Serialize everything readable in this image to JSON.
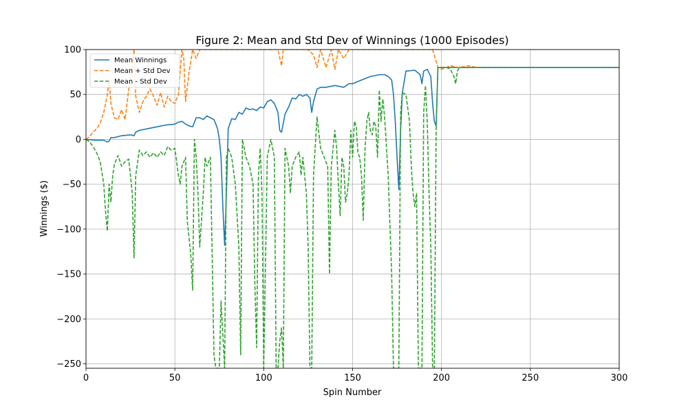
{
  "chart_data": {
    "type": "line",
    "title": "Figure 2: Mean and Std Dev of Winnings (1000 Episodes)",
    "xlabel": "Spin Number",
    "ylabel": "Winnings ($)",
    "xlim": [
      0,
      300
    ],
    "ylim": [
      -255,
      100
    ],
    "xticks": [
      0,
      50,
      100,
      150,
      200,
      250,
      300
    ],
    "yticks": [
      -250,
      -200,
      -150,
      -100,
      -50,
      0,
      50,
      100
    ],
    "grid": true,
    "legend_position": "upper-left",
    "series": [
      {
        "name": "Mean Winnings",
        "style": "solid",
        "color": "#1f77b4",
        "points": [
          [
            0,
            0
          ],
          [
            5,
            -1
          ],
          [
            10,
            -1
          ],
          [
            12,
            -3
          ],
          [
            13,
            -2
          ],
          [
            14,
            2
          ],
          [
            16,
            2
          ],
          [
            18,
            3
          ],
          [
            20,
            4
          ],
          [
            25,
            5
          ],
          [
            27,
            4
          ],
          [
            28,
            8
          ],
          [
            30,
            10
          ],
          [
            35,
            12
          ],
          [
            40,
            14
          ],
          [
            45,
            16
          ],
          [
            50,
            17
          ],
          [
            52,
            19
          ],
          [
            54,
            20
          ],
          [
            56,
            17
          ],
          [
            58,
            15
          ],
          [
            60,
            14
          ],
          [
            62,
            24
          ],
          [
            64,
            24
          ],
          [
            66,
            22
          ],
          [
            68,
            26
          ],
          [
            70,
            24
          ],
          [
            72,
            22
          ],
          [
            74,
            12
          ],
          [
            75,
            0
          ],
          [
            76,
            -20
          ],
          [
            77,
            -75
          ],
          [
            78,
            -118
          ],
          [
            79,
            -60
          ],
          [
            80,
            12
          ],
          [
            82,
            23
          ],
          [
            84,
            22
          ],
          [
            86,
            30
          ],
          [
            88,
            28
          ],
          [
            90,
            35
          ],
          [
            92,
            33
          ],
          [
            94,
            34
          ],
          [
            96,
            32
          ],
          [
            98,
            36
          ],
          [
            100,
            35
          ],
          [
            102,
            42
          ],
          [
            104,
            44
          ],
          [
            106,
            40
          ],
          [
            108,
            30
          ],
          [
            109,
            10
          ],
          [
            110,
            8
          ],
          [
            111,
            18
          ],
          [
            112,
            28
          ],
          [
            114,
            36
          ],
          [
            116,
            46
          ],
          [
            118,
            45
          ],
          [
            120,
            50
          ],
          [
            122,
            48
          ],
          [
            124,
            50
          ],
          [
            126,
            46
          ],
          [
            127,
            30
          ],
          [
            128,
            42
          ],
          [
            130,
            56
          ],
          [
            132,
            58
          ],
          [
            135,
            58
          ],
          [
            140,
            60
          ],
          [
            145,
            58
          ],
          [
            148,
            62
          ],
          [
            150,
            62
          ],
          [
            155,
            66
          ],
          [
            160,
            70
          ],
          [
            165,
            72
          ],
          [
            168,
            72
          ],
          [
            170,
            70
          ],
          [
            172,
            66
          ],
          [
            173,
            50
          ],
          [
            174,
            20
          ],
          [
            175,
            -20
          ],
          [
            176,
            -56
          ],
          [
            177,
            10
          ],
          [
            178,
            52
          ],
          [
            180,
            76
          ],
          [
            185,
            77
          ],
          [
            188,
            72
          ],
          [
            189,
            62
          ],
          [
            190,
            76
          ],
          [
            192,
            78
          ],
          [
            194,
            70
          ],
          [
            195,
            40
          ],
          [
            196,
            20
          ],
          [
            197,
            15
          ],
          [
            198,
            80
          ],
          [
            200,
            80
          ],
          [
            210,
            80
          ],
          [
            220,
            80
          ],
          [
            250,
            80
          ],
          [
            300,
            80
          ]
        ]
      },
      {
        "name": "Mean + Std Dev",
        "style": "dashed",
        "color": "#ff7f0e",
        "points": [
          [
            0,
            0
          ],
          [
            2,
            3
          ],
          [
            4,
            8
          ],
          [
            6,
            12
          ],
          [
            8,
            18
          ],
          [
            10,
            30
          ],
          [
            12,
            50
          ],
          [
            13,
            66
          ],
          [
            14,
            40
          ],
          [
            16,
            24
          ],
          [
            18,
            22
          ],
          [
            20,
            33
          ],
          [
            22,
            22
          ],
          [
            24,
            55
          ],
          [
            26,
            80
          ],
          [
            27,
            100
          ],
          [
            28,
            48
          ],
          [
            30,
            30
          ],
          [
            32,
            42
          ],
          [
            34,
            48
          ],
          [
            36,
            56
          ],
          [
            38,
            48
          ],
          [
            40,
            38
          ],
          [
            42,
            52
          ],
          [
            44,
            36
          ],
          [
            46,
            48
          ],
          [
            48,
            42
          ],
          [
            50,
            40
          ],
          [
            52,
            50
          ],
          [
            54,
            100
          ],
          [
            55,
            90
          ],
          [
            56,
            42
          ],
          [
            58,
            75
          ],
          [
            60,
            100
          ],
          [
            62,
            90
          ],
          [
            64,
            100
          ],
          [
            66,
            100
          ],
          [
            68,
            100
          ],
          [
            70,
            100
          ],
          [
            75,
            100
          ],
          [
            80,
            100
          ],
          [
            90,
            100
          ],
          [
            100,
            100
          ],
          [
            108,
            100
          ],
          [
            110,
            82
          ],
          [
            111,
            100
          ],
          [
            120,
            100
          ],
          [
            125,
            100
          ],
          [
            128,
            94
          ],
          [
            130,
            80
          ],
          [
            132,
            100
          ],
          [
            135,
            80
          ],
          [
            138,
            100
          ],
          [
            140,
            78
          ],
          [
            142,
            100
          ],
          [
            145,
            90
          ],
          [
            148,
            100
          ],
          [
            150,
            100
          ],
          [
            160,
            100
          ],
          [
            170,
            100
          ],
          [
            180,
            100
          ],
          [
            190,
            100
          ],
          [
            195,
            100
          ],
          [
            198,
            80
          ],
          [
            200,
            78
          ],
          [
            205,
            82
          ],
          [
            210,
            80
          ],
          [
            215,
            82
          ],
          [
            220,
            80
          ],
          [
            222,
            80
          ]
        ]
      },
      {
        "name": "Mean - Std Dev",
        "style": "dashed",
        "color": "#2ca02c",
        "points": [
          [
            0,
            0
          ],
          [
            2,
            -3
          ],
          [
            4,
            -8
          ],
          [
            6,
            -15
          ],
          [
            8,
            -25
          ],
          [
            10,
            -50
          ],
          [
            11,
            -80
          ],
          [
            12,
            -102
          ],
          [
            13,
            -50
          ],
          [
            14,
            -70
          ],
          [
            15,
            -40
          ],
          [
            16,
            -28
          ],
          [
            18,
            -18
          ],
          [
            20,
            -30
          ],
          [
            22,
            -25
          ],
          [
            24,
            -22
          ],
          [
            25,
            -40
          ],
          [
            26,
            -60
          ],
          [
            27,
            -132
          ],
          [
            28,
            -40
          ],
          [
            30,
            -12
          ],
          [
            32,
            -18
          ],
          [
            34,
            -14
          ],
          [
            36,
            -20
          ],
          [
            38,
            -15
          ],
          [
            40,
            -20
          ],
          [
            42,
            -14
          ],
          [
            44,
            -18
          ],
          [
            46,
            -8
          ],
          [
            48,
            -12
          ],
          [
            50,
            -10
          ],
          [
            52,
            -40
          ],
          [
            53,
            -50
          ],
          [
            54,
            -30
          ],
          [
            56,
            -20
          ],
          [
            57,
            -92
          ],
          [
            58,
            -110
          ],
          [
            59,
            -130
          ],
          [
            60,
            -168
          ],
          [
            61,
            0
          ],
          [
            62,
            -20
          ],
          [
            63,
            -60
          ],
          [
            64,
            -120
          ],
          [
            65,
            -90
          ],
          [
            66,
            -60
          ],
          [
            67,
            -20
          ],
          [
            68,
            -30
          ],
          [
            70,
            -20
          ],
          [
            72,
            -240
          ],
          [
            73,
            -255
          ],
          [
            74,
            -255
          ],
          [
            75,
            -255
          ],
          [
            76,
            -180
          ],
          [
            78,
            -255
          ],
          [
            79,
            -20
          ],
          [
            80,
            -10
          ],
          [
            82,
            -20
          ],
          [
            84,
            -50
          ],
          [
            86,
            -120
          ],
          [
            87,
            -240
          ],
          [
            88,
            0
          ],
          [
            89,
            -10
          ],
          [
            90,
            -20
          ],
          [
            92,
            -30
          ],
          [
            94,
            -50
          ],
          [
            95,
            -160
          ],
          [
            96,
            -232
          ],
          [
            97,
            -40
          ],
          [
            98,
            -10
          ],
          [
            99,
            -60
          ],
          [
            100,
            -255
          ],
          [
            102,
            -20
          ],
          [
            104,
            0
          ],
          [
            106,
            -20
          ],
          [
            107,
            -255
          ],
          [
            108,
            -255
          ],
          [
            109,
            -225
          ],
          [
            110,
            -210
          ],
          [
            111,
            -255
          ],
          [
            112,
            -10
          ],
          [
            114,
            -30
          ],
          [
            115,
            -60
          ],
          [
            116,
            -30
          ],
          [
            118,
            -20
          ],
          [
            120,
            -14
          ],
          [
            121,
            -40
          ],
          [
            122,
            -20
          ],
          [
            124,
            -60
          ],
          [
            125,
            -120
          ],
          [
            126,
            -255
          ],
          [
            127,
            -255
          ],
          [
            128,
            -40
          ],
          [
            130,
            25
          ],
          [
            132,
            -10
          ],
          [
            134,
            -20
          ],
          [
            136,
            -30
          ],
          [
            137,
            -150
          ],
          [
            138,
            -30
          ],
          [
            140,
            10
          ],
          [
            141,
            -10
          ],
          [
            142,
            -50
          ],
          [
            143,
            -85
          ],
          [
            144,
            -20
          ],
          [
            145,
            -30
          ],
          [
            146,
            -70
          ],
          [
            147,
            -60
          ],
          [
            148,
            -40
          ],
          [
            149,
            10
          ],
          [
            150,
            -20
          ],
          [
            151,
            20
          ],
          [
            152,
            15
          ],
          [
            153,
            -15
          ],
          [
            154,
            -20
          ],
          [
            155,
            -40
          ],
          [
            156,
            -90
          ],
          [
            157,
            -10
          ],
          [
            158,
            20
          ],
          [
            159,
            30
          ],
          [
            160,
            10
          ],
          [
            161,
            5
          ],
          [
            162,
            20
          ],
          [
            163,
            15
          ],
          [
            164,
            -20
          ],
          [
            165,
            55
          ],
          [
            166,
            20
          ],
          [
            167,
            45
          ],
          [
            168,
            25
          ],
          [
            170,
            -40
          ],
          [
            172,
            -150
          ],
          [
            173,
            -255
          ],
          [
            174,
            -255
          ],
          [
            175,
            -255
          ],
          [
            176,
            -255
          ],
          [
            177,
            30
          ],
          [
            178,
            52
          ],
          [
            180,
            50
          ],
          [
            182,
            20
          ],
          [
            183,
            -30
          ],
          [
            184,
            -60
          ],
          [
            185,
            -75
          ],
          [
            186,
            -60
          ],
          [
            187,
            -255
          ],
          [
            188,
            -255
          ],
          [
            189,
            -255
          ],
          [
            190,
            30
          ],
          [
            191,
            60
          ],
          [
            192,
            20
          ],
          [
            193,
            -60
          ],
          [
            194,
            -120
          ],
          [
            195,
            -255
          ],
          [
            196,
            -255
          ],
          [
            197,
            10
          ],
          [
            198,
            80
          ],
          [
            200,
            80
          ],
          [
            203,
            80
          ],
          [
            205,
            78
          ],
          [
            207,
            70
          ],
          [
            208,
            62
          ],
          [
            209,
            76
          ],
          [
            210,
            80
          ],
          [
            220,
            80
          ],
          [
            250,
            80
          ],
          [
            300,
            80
          ]
        ]
      }
    ]
  }
}
